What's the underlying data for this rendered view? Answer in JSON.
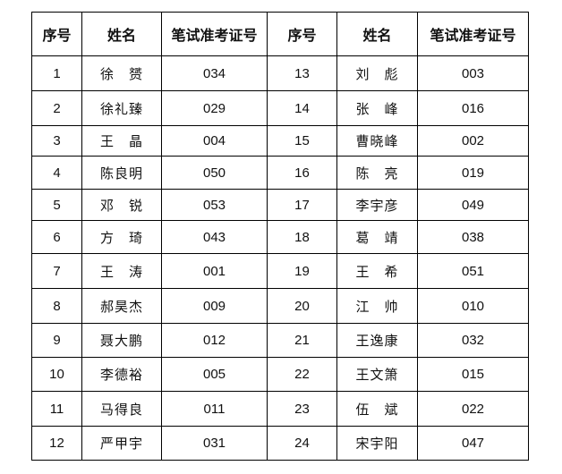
{
  "headers": [
    "序号",
    "姓名",
    "笔试准考证号",
    "序号",
    "姓名",
    "笔试准考证号"
  ],
  "rows": [
    {
      "no1": "1",
      "name1": "徐　赟",
      "id1": "034",
      "no2": "13",
      "name2": "刘　彪",
      "id2": "003"
    },
    {
      "no1": "2",
      "name1": "徐礼臻",
      "id1": "029",
      "no2": "14",
      "name2": "张　峰",
      "id2": "016"
    },
    {
      "no1": "3",
      "name1": "王　晶",
      "id1": "004",
      "no2": "15",
      "name2": "曹晓峰",
      "id2": "002"
    },
    {
      "no1": "4",
      "name1": "陈良明",
      "id1": "050",
      "no2": "16",
      "name2": "陈　亮",
      "id2": "019"
    },
    {
      "no1": "5",
      "name1": "邓　锐",
      "id1": "053",
      "no2": "17",
      "name2": "李宇彦",
      "id2": "049"
    },
    {
      "no1": "6",
      "name1": "方　琦",
      "id1": "043",
      "no2": "18",
      "name2": "葛　靖",
      "id2": "038"
    },
    {
      "no1": "7",
      "name1": "王　涛",
      "id1": "001",
      "no2": "19",
      "name2": "王　希",
      "id2": "051"
    },
    {
      "no1": "8",
      "name1": "郝昊杰",
      "id1": "009",
      "no2": "20",
      "name2": "江　帅",
      "id2": "010"
    },
    {
      "no1": "9",
      "name1": "聂大鹏",
      "id1": "012",
      "no2": "21",
      "name2": "王逸康",
      "id2": "032"
    },
    {
      "no1": "10",
      "name1": "李德裕",
      "id1": "005",
      "no2": "22",
      "name2": "王文箫",
      "id2": "015"
    },
    {
      "no1": "11",
      "name1": "马得良",
      "id1": "011",
      "no2": "23",
      "name2": "伍　斌",
      "id2": "022"
    },
    {
      "no1": "12",
      "name1": "严甲宇",
      "id1": "031",
      "no2": "24",
      "name2": "宋宇阳",
      "id2": "047"
    }
  ]
}
